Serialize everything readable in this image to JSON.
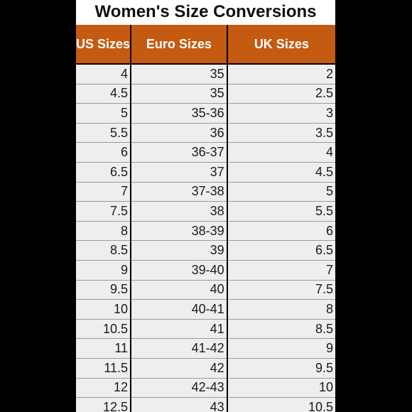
{
  "title": "Women's Size Conversions",
  "colors": {
    "header_bg": "#c55a11",
    "header_text": "#ffffff",
    "row_bg": "#eeeeee",
    "background": "#000000"
  },
  "columns": [
    "US Sizes",
    "Euro Sizes",
    "UK Sizes"
  ],
  "rows": [
    [
      "4",
      "35",
      "2"
    ],
    [
      "4.5",
      "35",
      "2.5"
    ],
    [
      "5",
      "35-36",
      "3"
    ],
    [
      "5.5",
      "36",
      "3.5"
    ],
    [
      "6",
      "36-37",
      "4"
    ],
    [
      "6.5",
      "37",
      "4.5"
    ],
    [
      "7",
      "37-38",
      "5"
    ],
    [
      "7.5",
      "38",
      "5.5"
    ],
    [
      "8",
      "38-39",
      "6"
    ],
    [
      "8.5",
      "39",
      "6.5"
    ],
    [
      "9",
      "39-40",
      "7"
    ],
    [
      "9.5",
      "40",
      "7.5"
    ],
    [
      "10",
      "40-41",
      "8"
    ],
    [
      "10.5",
      "41",
      "8.5"
    ],
    [
      "11",
      "41-42",
      "9"
    ],
    [
      "11.5",
      "42",
      "9.5"
    ],
    [
      "12",
      "42-43",
      "10"
    ],
    [
      "12.5",
      "43",
      "10.5"
    ]
  ]
}
